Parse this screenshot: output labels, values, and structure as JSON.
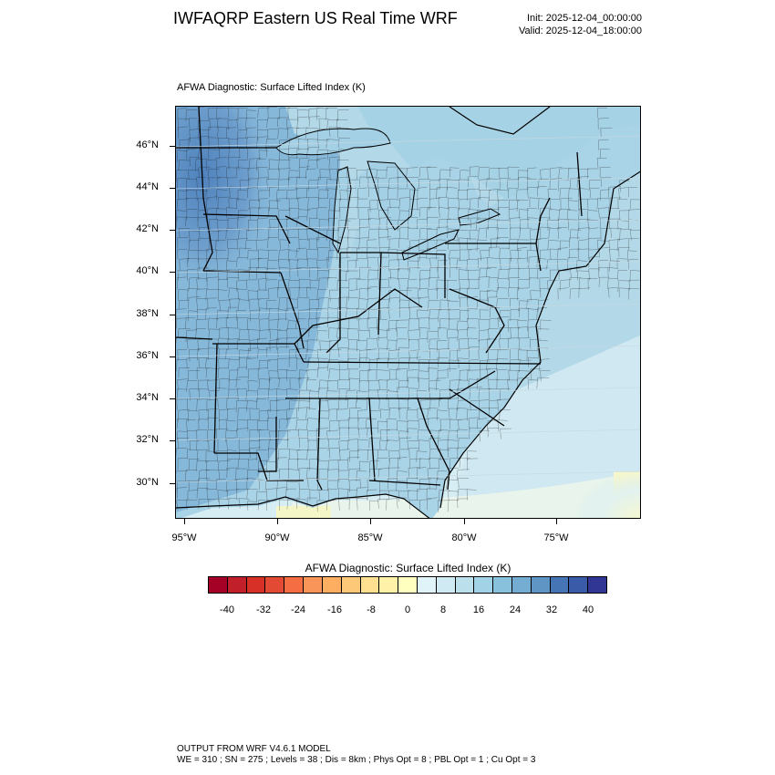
{
  "header": {
    "title": "IWFAQRP Eastern US Real Time WRF",
    "init": "Init: 2025-12-04_00:00:00",
    "valid": "Valid: 2025-12-04_18:00:00"
  },
  "plot": {
    "subtitle": "AFWA Diagnostic: Surface Lifted Index   (K)",
    "lat_labels": [
      "46°N",
      "44°N",
      "42°N",
      "40°N",
      "38°N",
      "36°N",
      "34°N",
      "32°N",
      "30°N"
    ],
    "lon_labels": [
      "95°W",
      "90°W",
      "85°W",
      "80°W",
      "75°W"
    ]
  },
  "colorbar": {
    "title": "AFWA Diagnostic: Surface Lifted Index  (K)",
    "tick_labels": [
      "-40",
      "-32",
      "-24",
      "-16",
      "-8",
      "0",
      "8",
      "16",
      "24",
      "32",
      "40"
    ],
    "colors": [
      "#a50026",
      "#c1202b",
      "#d73027",
      "#e34a33",
      "#f46d43",
      "#f99558",
      "#fdae61",
      "#fdc979",
      "#fee090",
      "#fff1a8",
      "#ffffbf",
      "#e0f3f8",
      "#cfeaf2",
      "#bbe0ec",
      "#a2d2e5",
      "#88c1dc",
      "#74add1",
      "#5e95c4",
      "#4575b4",
      "#3a5ca8",
      "#313695"
    ]
  },
  "footer": {
    "line1": "OUTPUT FROM WRF V4.6.1 MODEL",
    "line2": "WE = 310 ; SN = 275 ; Levels = 38 ; Dis = 8km ; Phys Opt = 8 ; PBL Opt = 1 ; Cu Opt = 3"
  }
}
